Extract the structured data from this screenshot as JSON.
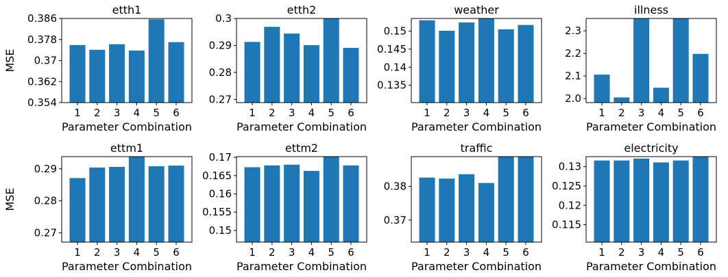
{
  "figure": {
    "bar_color": "#1f77b4",
    "row_ylabels": [
      "MSE",
      "MSE"
    ]
  },
  "chart_data": [
    {
      "type": "bar",
      "title": "etth1",
      "xlabel": "Parameter Combination",
      "ylabel": "MSE",
      "categories": [
        "1",
        "2",
        "3",
        "4",
        "5",
        "6"
      ],
      "values": [
        0.3759,
        0.3741,
        0.3762,
        0.3738,
        0.3857,
        0.377
      ],
      "ylim": [
        0.354,
        0.386
      ],
      "yticks": [
        0.354,
        0.362,
        0.37,
        0.378,
        0.386
      ],
      "ytick_labels": [
        "0.354",
        "0.362",
        "0.37",
        "0.378",
        "0.386"
      ]
    },
    {
      "type": "bar",
      "title": "etth2",
      "xlabel": "Parameter Combination",
      "ylabel": "",
      "categories": [
        "1",
        "2",
        "3",
        "4",
        "5",
        "6"
      ],
      "values": [
        0.2913,
        0.2969,
        0.2944,
        0.2901,
        0.3005,
        0.2891
      ],
      "ylim": [
        0.2688,
        0.3
      ],
      "yticks": [
        0.27,
        0.28,
        0.29,
        0.3
      ],
      "ytick_labels": [
        "0.27",
        "0.28",
        "0.29",
        "0.3"
      ]
    },
    {
      "type": "bar",
      "title": "weather",
      "xlabel": "Parameter Combination",
      "ylabel": "",
      "categories": [
        "1",
        "2",
        "3",
        "4",
        "5",
        "6"
      ],
      "values": [
        0.153,
        0.1501,
        0.1524,
        0.1535,
        0.1505,
        0.1517
      ],
      "ylim": [
        0.1302,
        0.1535
      ],
      "yticks": [
        0.135,
        0.14,
        0.145,
        0.15
      ],
      "ytick_labels": [
        "0.135",
        "0.14",
        "0.145",
        "0.15"
      ]
    },
    {
      "type": "bar",
      "title": "illness",
      "xlabel": "Parameter Combination",
      "ylabel": "",
      "categories": [
        "1",
        "2",
        "3",
        "4",
        "5",
        "6"
      ],
      "values": [
        2.106,
        2.005,
        2.36,
        2.048,
        2.36,
        2.198
      ],
      "ylim": [
        1.982,
        2.355
      ],
      "yticks": [
        2.0,
        2.1,
        2.2,
        2.3
      ],
      "ytick_labels": [
        "2.0",
        "2.1",
        "2.2",
        "2.3"
      ]
    },
    {
      "type": "bar",
      "title": "ettm1",
      "xlabel": "Parameter Combination",
      "ylabel": "MSE",
      "categories": [
        "1",
        "2",
        "3",
        "4",
        "5",
        "6"
      ],
      "values": [
        0.2871,
        0.2904,
        0.2906,
        0.2938,
        0.2908,
        0.291
      ],
      "ylim": [
        0.2671,
        0.2938
      ],
      "yticks": [
        0.27,
        0.28,
        0.29
      ],
      "ytick_labels": [
        "0.27",
        "0.28",
        "0.29"
      ]
    },
    {
      "type": "bar",
      "title": "ettm2",
      "xlabel": "Parameter Combination",
      "ylabel": "",
      "categories": [
        "1",
        "2",
        "3",
        "4",
        "5",
        "6"
      ],
      "values": [
        0.1673,
        0.1678,
        0.168,
        0.1663,
        0.1702,
        0.1678
      ],
      "ylim": [
        0.1468,
        0.1702
      ],
      "yticks": [
        0.15,
        0.155,
        0.16,
        0.165,
        0.17
      ],
      "ytick_labels": [
        "0.15",
        "0.155",
        "0.16",
        "0.165",
        "0.17"
      ]
    },
    {
      "type": "bar",
      "title": "traffic",
      "xlabel": "Parameter Combination",
      "ylabel": "",
      "categories": [
        "1",
        "2",
        "3",
        "4",
        "5",
        "6"
      ],
      "values": [
        0.3826,
        0.3823,
        0.3836,
        0.381,
        0.3888,
        0.3888
      ],
      "ylim": [
        0.3635,
        0.3888
      ],
      "yticks": [
        0.37,
        0.38
      ],
      "ytick_labels": [
        "0.37",
        "0.38"
      ]
    },
    {
      "type": "bar",
      "title": "electricity",
      "xlabel": "Parameter Combination",
      "ylabel": "",
      "categories": [
        "1",
        "2",
        "3",
        "4",
        "5",
        "6"
      ],
      "values": [
        0.1316,
        0.1316,
        0.1321,
        0.1311,
        0.1316,
        0.1326
      ],
      "ylim": [
        0.1105,
        0.1326
      ],
      "yticks": [
        0.115,
        0.12,
        0.125,
        0.13
      ],
      "ytick_labels": [
        "0.115",
        "0.12",
        "0.125",
        "0.13"
      ]
    }
  ]
}
